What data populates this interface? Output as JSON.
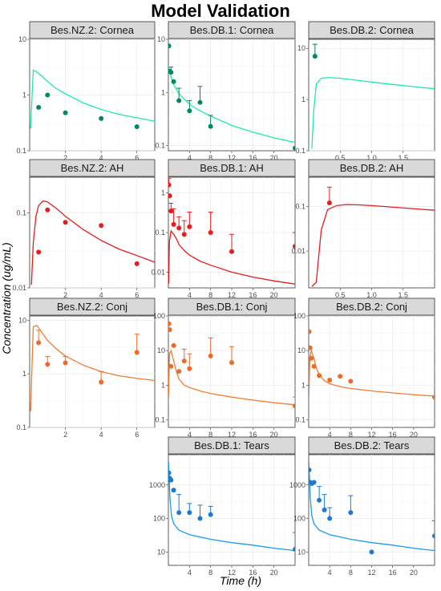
{
  "figure": {
    "title": "Model Validation",
    "ylabel": "Concentration (ug/mL)",
    "xlabel": "Time (h)"
  },
  "chart_data": [
    {
      "type": "line",
      "title": "Bes.NZ.2: Cornea",
      "color": "#1de9b6",
      "point_color": "#00895a",
      "xlim": [
        0,
        7
      ],
      "ylim_log": [
        0.1,
        10
      ],
      "x_ticks": [
        2,
        4,
        6
      ],
      "y_ticks": [
        0.1,
        1,
        10
      ],
      "line": {
        "x": [
          0.05,
          0.2,
          0.4,
          0.7,
          1.0,
          1.5,
          2,
          3,
          4,
          5,
          6,
          7
        ],
        "y": [
          0.25,
          2.8,
          2.6,
          2.15,
          1.75,
          1.3,
          1.05,
          0.72,
          0.55,
          0.45,
          0.39,
          0.34
        ]
      },
      "points": [
        {
          "x": 0.5,
          "y": 0.6
        },
        {
          "x": 1.0,
          "y": 1.0
        },
        {
          "x": 2.0,
          "y": 0.48
        },
        {
          "x": 4.0,
          "y": 0.38
        },
        {
          "x": 6.0,
          "y": 0.27
        }
      ]
    },
    {
      "type": "line",
      "title": "Bes.DB.1: Cornea",
      "color": "#1de9b6",
      "point_color": "#00895a",
      "xlim": [
        0,
        24
      ],
      "ylim_log": [
        0.08,
        10
      ],
      "x_ticks": [
        4,
        8,
        12,
        16,
        20
      ],
      "y_ticks": [
        0.1,
        1,
        10
      ],
      "line": {
        "x": [
          0.05,
          0.25,
          0.5,
          1,
          2,
          3,
          4,
          6,
          8,
          12,
          16,
          20,
          24
        ],
        "y": [
          3.0,
          2.6,
          2.0,
          1.4,
          0.95,
          0.75,
          0.6,
          0.45,
          0.36,
          0.24,
          0.18,
          0.14,
          0.115
        ]
      },
      "points": [
        {
          "x": 0.08,
          "y": 7.5
        },
        {
          "x": 0.25,
          "y": 2.5
        },
        {
          "x": 0.5,
          "y": 2.4,
          "err": 3.0
        },
        {
          "x": 1.0,
          "y": 1.6
        },
        {
          "x": 2.0,
          "y": 0.7,
          "err": 1.2
        },
        {
          "x": 4.0,
          "y": 0.45,
          "err": 0.7
        },
        {
          "x": 6.0,
          "y": 0.65,
          "err": 1.3
        },
        {
          "x": 8.0,
          "y": 0.23,
          "err": 0.37
        },
        {
          "x": 24.0,
          "y": 0.09
        }
      ]
    },
    {
      "type": "line",
      "title": "Bes.DB.2: Cornea",
      "color": "#1de9b6",
      "point_color": "#00895a",
      "xlim": [
        0,
        2
      ],
      "ylim_log": [
        0.1,
        15
      ],
      "x_ticks": [
        0.5,
        1.0,
        1.5
      ],
      "x_tick_labels": [
        "0.5",
        "1.0",
        "1.5"
      ],
      "y_ticks": [
        0.1,
        1,
        10
      ],
      "line": {
        "x": [
          0.05,
          0.08,
          0.12,
          0.2,
          0.3,
          0.5,
          0.8,
          1.2,
          1.6,
          2.0
        ],
        "y": [
          0.11,
          0.6,
          2.0,
          2.6,
          2.7,
          2.6,
          2.35,
          2.05,
          1.82,
          1.62
        ]
      },
      "points": [
        {
          "x": 0.1,
          "y": 7.0,
          "err": 12.0
        }
      ]
    },
    {
      "type": "line",
      "title": "Bes.NZ.2: AH",
      "color": "#e81c1c",
      "point_color": "#e81c1c",
      "xlim": [
        0,
        7
      ],
      "ylim_log": [
        0.01,
        0.3
      ],
      "x_ticks": [
        2,
        4,
        6
      ],
      "y_ticks": [
        0.01,
        0.1
      ],
      "y_tick_labels": [
        "0.01",
        "0.1"
      ],
      "line": {
        "x": [
          0.1,
          0.2,
          0.35,
          0.5,
          0.75,
          1.0,
          1.5,
          2,
          3,
          4,
          5,
          6,
          7
        ],
        "y": [
          0.011,
          0.04,
          0.09,
          0.125,
          0.145,
          0.14,
          0.115,
          0.09,
          0.06,
          0.043,
          0.033,
          0.027,
          0.022
        ]
      },
      "points": [
        {
          "x": 0.5,
          "y": 0.03
        },
        {
          "x": 1.0,
          "y": 0.11
        },
        {
          "x": 2.0,
          "y": 0.075
        },
        {
          "x": 4.0,
          "y": 0.068
        },
        {
          "x": 6.0,
          "y": 0.021
        }
      ]
    },
    {
      "type": "line",
      "title": "Bes.DB.1: AH",
      "color": "#e81c1c",
      "point_color": "#e81c1c",
      "xlim": [
        0,
        24
      ],
      "ylim_log": [
        0.004,
        2.5
      ],
      "x_ticks": [
        4,
        8,
        12,
        16,
        20
      ],
      "y_ticks": [
        0.01,
        0.1,
        1
      ],
      "y_tick_labels": [
        "0.01",
        "0.1",
        "1"
      ],
      "line": {
        "x": [
          0.05,
          0.2,
          0.5,
          1,
          1.5,
          2,
          3,
          4,
          6,
          8,
          12,
          16,
          20,
          24
        ],
        "y": [
          0.005,
          0.06,
          0.11,
          0.09,
          0.07,
          0.05,
          0.035,
          0.027,
          0.019,
          0.015,
          0.01,
          0.0075,
          0.006,
          0.005
        ]
      },
      "points": [
        {
          "x": 0.08,
          "y": 1.6,
          "err": 2.3
        },
        {
          "x": 0.25,
          "y": 0.85
        },
        {
          "x": 0.5,
          "y": 0.35,
          "err": 0.55
        },
        {
          "x": 1.0,
          "y": 0.16,
          "err": 0.4
        },
        {
          "x": 2.0,
          "y": 0.13,
          "err": 0.25
        },
        {
          "x": 3.0,
          "y": 0.09,
          "err": 0.2
        },
        {
          "x": 4.0,
          "y": 0.14,
          "err": 0.33
        },
        {
          "x": 8.0,
          "y": 0.1,
          "err": 0.33
        },
        {
          "x": 12.0,
          "y": 0.033,
          "err": 0.09
        },
        {
          "x": 24.0,
          "y": 0.045,
          "err": 0.1
        }
      ]
    },
    {
      "type": "line",
      "title": "Bes.DB.2: AH",
      "color": "#e81c1c",
      "point_color": "#e81c1c",
      "xlim": [
        0,
        2
      ],
      "ylim_log": [
        0.0015,
        0.45
      ],
      "x_ticks": [
        0.5,
        1.0,
        1.5
      ],
      "x_tick_labels": [
        "0.5",
        "1.0",
        "1.5"
      ],
      "y_ticks": [
        0.01,
        0.1
      ],
      "y_tick_labels": [
        "0.01",
        "0.1"
      ],
      "line": {
        "x": [
          0.05,
          0.12,
          0.2,
          0.3,
          0.45,
          0.6,
          0.8,
          1.0,
          1.3,
          1.6,
          2.0
        ],
        "y": [
          0.0016,
          0.002,
          0.03,
          0.085,
          0.105,
          0.11,
          0.108,
          0.104,
          0.097,
          0.09,
          0.082
        ]
      },
      "points": [
        {
          "x": 0.33,
          "y": 0.12,
          "err": 0.27
        }
      ]
    },
    {
      "type": "line",
      "title": "Bes.NZ.2: Conj",
      "color": "#f47c2e",
      "point_color": "#ee6a2a",
      "xlim": [
        0,
        7
      ],
      "ylim_log": [
        0.1,
        12
      ],
      "x_ticks": [
        2,
        4,
        6
      ],
      "y_ticks": [
        0.1,
        1,
        10
      ],
      "line": {
        "x": [
          0.05,
          0.2,
          0.4,
          0.7,
          1.0,
          1.5,
          2,
          3,
          4,
          5,
          6,
          7
        ],
        "y": [
          0.2,
          7.5,
          8.0,
          5.8,
          4.2,
          2.9,
          2.15,
          1.45,
          1.1,
          0.92,
          0.82,
          0.75
        ]
      },
      "points": [
        {
          "x": 0.5,
          "y": 3.8,
          "err": 6.5
        },
        {
          "x": 1.0,
          "y": 1.5,
          "err": 2.1
        },
        {
          "x": 2.0,
          "y": 1.6,
          "err": 2.1
        },
        {
          "x": 4.0,
          "y": 0.7,
          "err": 1.1
        },
        {
          "x": 6.0,
          "y": 2.5,
          "err": 5.5
        }
      ]
    },
    {
      "type": "line",
      "title": "Bes.DB.1: Conj",
      "color": "#f47c2e",
      "point_color": "#ee6a2a",
      "xlim": [
        0,
        24
      ],
      "ylim_log": [
        0.06,
        100
      ],
      "x_ticks": [
        4,
        8,
        12,
        16,
        20
      ],
      "y_ticks": [
        0.1,
        1,
        10,
        100
      ],
      "y_tick_labels": [
        "0.1",
        "1",
        "10",
        "100"
      ],
      "line": {
        "x": [
          0.05,
          0.2,
          0.5,
          1,
          1.5,
          2,
          3,
          4,
          6,
          8,
          12,
          16,
          20,
          24
        ],
        "y": [
          0.5,
          8.0,
          10.0,
          5.0,
          2.5,
          1.5,
          1.0,
          0.85,
          0.68,
          0.57,
          0.45,
          0.37,
          0.31,
          0.27
        ]
      },
      "points": [
        {
          "x": 0.08,
          "y": 60.0
        },
        {
          "x": 0.25,
          "y": 40.0
        },
        {
          "x": 0.5,
          "y": 3.5
        },
        {
          "x": 1.0,
          "y": 14.0
        },
        {
          "x": 2.0,
          "y": 2.5
        },
        {
          "x": 3.0,
          "y": 5.0,
          "err": 11.0
        },
        {
          "x": 4.0,
          "y": 3.0,
          "err": 8.0
        },
        {
          "x": 8.0,
          "y": 7.0,
          "err": 23.0
        },
        {
          "x": 12.0,
          "y": 4.5,
          "err": 13.0
        },
        {
          "x": 24.0,
          "y": 0.25,
          "err": 0.45
        }
      ]
    },
    {
      "type": "line",
      "title": "Bes.DB.2: Conj",
      "color": "#f47c2e",
      "point_color": "#ee6a2a",
      "xlim": [
        0,
        24
      ],
      "ylim_log": [
        0.06,
        100
      ],
      "x_ticks": [
        4,
        8,
        12,
        16,
        20
      ],
      "y_ticks": [
        0.1,
        1,
        10,
        100
      ],
      "y_tick_labels": [
        "0.1",
        "1",
        "10",
        "100"
      ],
      "line": {
        "x": [
          0.05,
          0.2,
          0.5,
          1,
          1.5,
          2,
          3,
          4,
          6,
          8,
          12,
          16,
          20,
          24
        ],
        "y": [
          0.5,
          6.0,
          10.0,
          6.0,
          3.0,
          2.0,
          1.35,
          1.1,
          0.9,
          0.8,
          0.68,
          0.6,
          0.53,
          0.48
        ]
      },
      "points": [
        {
          "x": 0.08,
          "y": 35.0
        },
        {
          "x": 0.25,
          "y": 12.0
        },
        {
          "x": 0.5,
          "y": 6.0
        },
        {
          "x": 1.0,
          "y": 3.5
        },
        {
          "x": 2.0,
          "y": 1.9
        },
        {
          "x": 4.0,
          "y": 1.4
        },
        {
          "x": 6.0,
          "y": 1.8
        },
        {
          "x": 8.0,
          "y": 1.3
        },
        {
          "x": 24.0,
          "y": 0.45
        }
      ]
    },
    {
      "type": "line",
      "title": "Bes.DB.1: Tears",
      "color": "#1a9bef",
      "point_color": "#1a7bd4",
      "xlim": [
        0,
        24
      ],
      "ylim_log": [
        4,
        8000
      ],
      "x_ticks": [
        4,
        8,
        12,
        16,
        20
      ],
      "y_ticks": [
        10,
        100,
        1000
      ],
      "y_tick_labels": [
        "10",
        "100",
        "1000"
      ],
      "line": {
        "x": [
          0.03,
          0.08,
          0.15,
          0.3,
          0.6,
          1,
          2,
          4,
          8,
          12,
          16,
          20,
          24
        ],
        "y": [
          5000,
          3000,
          1500,
          400,
          120,
          70,
          45,
          33,
          24,
          19,
          16,
          13,
          11
        ]
      },
      "points": [
        {
          "x": 0.08,
          "y": 2300
        },
        {
          "x": 0.25,
          "y": 1600
        },
        {
          "x": 0.5,
          "y": 1400
        },
        {
          "x": 1.0,
          "y": 700
        },
        {
          "x": 2.0,
          "y": 150,
          "err": 520
        },
        {
          "x": 4.0,
          "y": 150,
          "err": 280
        },
        {
          "x": 6.0,
          "y": 100,
          "err": 250
        },
        {
          "x": 8.0,
          "y": 130,
          "err": 230
        },
        {
          "x": 24.0,
          "y": 12,
          "err": 38
        }
      ]
    },
    {
      "type": "line",
      "title": "Bes.DB.2: Tears",
      "color": "#1a9bef",
      "point_color": "#1a7bd4",
      "xlim": [
        0,
        24
      ],
      "ylim_log": [
        4,
        8000
      ],
      "x_ticks": [
        4,
        8,
        12,
        16,
        20
      ],
      "y_ticks": [
        10,
        100,
        1000
      ],
      "y_tick_labels": [
        "10",
        "100",
        "1000"
      ],
      "line": {
        "x": [
          0.03,
          0.08,
          0.15,
          0.3,
          0.6,
          1,
          2,
          4,
          8,
          12,
          16,
          20,
          24
        ],
        "y": [
          5000,
          3000,
          1500,
          400,
          120,
          70,
          45,
          33,
          24,
          19,
          16,
          13,
          11
        ]
      },
      "points": [
        {
          "x": 0.08,
          "y": 2800
        },
        {
          "x": 0.25,
          "y": 1200
        },
        {
          "x": 0.6,
          "y": 1100
        },
        {
          "x": 1.0,
          "y": 1200,
          "err": 1300
        },
        {
          "x": 2.0,
          "y": 350,
          "err": 900
        },
        {
          "x": 3.0,
          "y": 180,
          "err": 520
        },
        {
          "x": 4.0,
          "y": 100,
          "err": 210
        },
        {
          "x": 8.0,
          "y": 150,
          "err": 480
        },
        {
          "x": 12.0,
          "y": 10
        },
        {
          "x": 24.0,
          "y": 30,
          "err": 85
        }
      ]
    }
  ]
}
